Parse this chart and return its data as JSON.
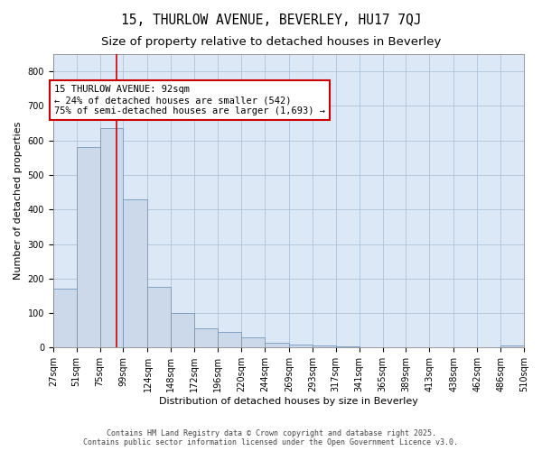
{
  "title": "15, THURLOW AVENUE, BEVERLEY, HU17 7QJ",
  "subtitle": "Size of property relative to detached houses in Beverley",
  "xlabel": "Distribution of detached houses by size in Beverley",
  "ylabel": "Number of detached properties",
  "bar_color": "#ccd9ea",
  "bar_edge_color": "#7399c0",
  "grid_color": "#afc4d8",
  "background_color": "#dce8f5",
  "property_line_x": 92,
  "property_line_color": "#cc0000",
  "annotation_text": "15 THURLOW AVENUE: 92sqm\n← 24% of detached houses are smaller (542)\n75% of semi-detached houses are larger (1,693) →",
  "annotation_box_color": "#cc0000",
  "bins": [
    27,
    51,
    75,
    99,
    124,
    148,
    172,
    196,
    220,
    244,
    269,
    293,
    317,
    341,
    365,
    389,
    413,
    438,
    462,
    486,
    510
  ],
  "bar_heights": [
    170,
    580,
    635,
    430,
    175,
    100,
    55,
    45,
    30,
    15,
    10,
    5,
    3,
    2,
    1,
    1,
    0,
    0,
    0,
    5
  ],
  "ylim": [
    0,
    850
  ],
  "yticks": [
    0,
    100,
    200,
    300,
    400,
    500,
    600,
    700,
    800
  ],
  "footer_text": "Contains HM Land Registry data © Crown copyright and database right 2025.\nContains public sector information licensed under the Open Government Licence v3.0.",
  "title_fontsize": 10.5,
  "subtitle_fontsize": 9.5,
  "axis_label_fontsize": 8,
  "tick_fontsize": 7,
  "annotation_fontsize": 7.5,
  "footer_fontsize": 6.0
}
